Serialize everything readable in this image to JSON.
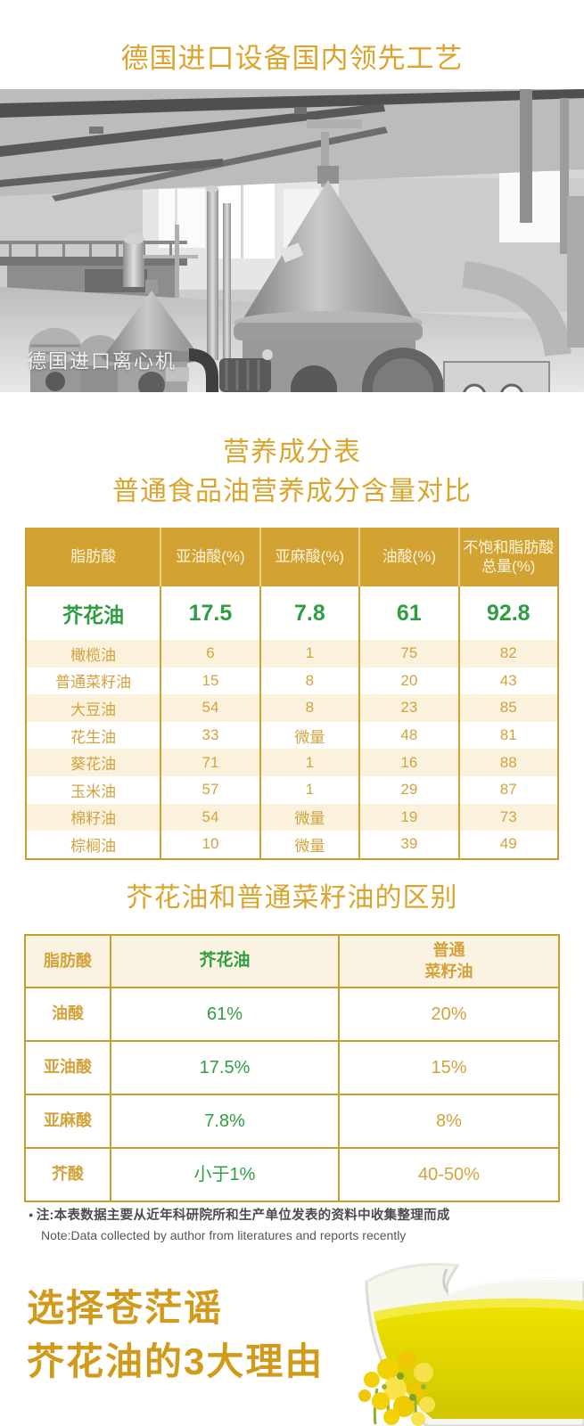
{
  "page": {
    "top_title": "德国进口设备国内领先工艺",
    "photo_caption": "德国进口离心机"
  },
  "nutrition_section": {
    "title": "营养成分表",
    "subtitle": "普通食品油营养成分含量对比"
  },
  "table1": {
    "headers": [
      "脂肪酸",
      "亚油酸(%)",
      "亚麻酸(%)",
      "油酸(%)",
      "不饱和脂肪酸总量(%)"
    ],
    "highlight_row": {
      "name": "芥花油",
      "values": [
        "17.5",
        "7.8",
        "61",
        "92.8"
      ]
    },
    "rows": [
      {
        "name": "橄榄油",
        "values": [
          "6",
          "1",
          "75",
          "82"
        ]
      },
      {
        "name": "普通菜籽油",
        "values": [
          "15",
          "8",
          "20",
          "43"
        ]
      },
      {
        "name": "大豆油",
        "values": [
          "54",
          "8",
          "23",
          "85"
        ]
      },
      {
        "name": "花生油",
        "values": [
          "33",
          "微量",
          "48",
          "81"
        ]
      },
      {
        "name": "葵花油",
        "values": [
          "71",
          "1",
          "16",
          "88"
        ]
      },
      {
        "name": "玉米油",
        "values": [
          "57",
          "1",
          "29",
          "87"
        ]
      },
      {
        "name": "棉籽油",
        "values": [
          "54",
          "微量",
          "19",
          "73"
        ]
      },
      {
        "name": "棕榈油",
        "values": [
          "10",
          "微量",
          "39",
          "49"
        ]
      }
    ]
  },
  "difference_section": {
    "title": "芥花油和普通菜籽油的区别"
  },
  "table2": {
    "headers": [
      "脂肪酸",
      "芥花油",
      "普通\n菜籽油"
    ],
    "rows": [
      {
        "name": "油酸",
        "canola": "61%",
        "rapeseed": "20%"
      },
      {
        "name": "亚油酸",
        "canola": "17.5%",
        "rapeseed": "15%"
      },
      {
        "name": "亚麻酸",
        "canola": "7.8%",
        "rapeseed": "8%"
      },
      {
        "name": "芥酸",
        "canola": "小于1%",
        "rapeseed": "40-50%"
      }
    ]
  },
  "note": {
    "bullet": "●",
    "line1": "注:本表数据主要从近年科研院所和生产单位发表的资料中收集整理而成",
    "line2": "Note:Data collected by author from literatures and reports recently"
  },
  "footer": {
    "title_line1": "选择苍茫谣",
    "title_line2": "芥花油的3大理由"
  },
  "colors": {
    "gold_title": "#dba42d",
    "table_header_bg": "#d2a233",
    "gold_text": "#d3a23b",
    "cream_row_bg": "#fbf2de",
    "green_highlight": "#2f9e43",
    "border_gold": "#cb9c30",
    "note_gray": "#4c4c4c",
    "footer_gold": "#d19a1b"
  }
}
